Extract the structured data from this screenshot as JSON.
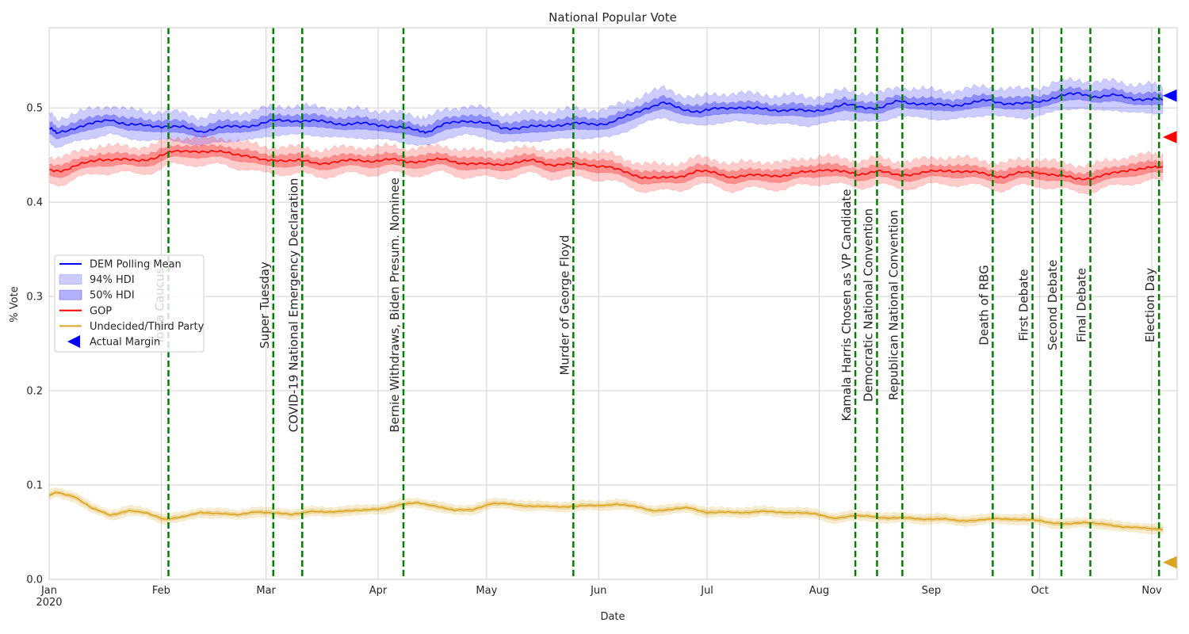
{
  "chart_data": {
    "type": "line",
    "title": "National Popular Vote",
    "xlabel": "Date",
    "ylabel": "% Vote",
    "xlim": [
      "2020-01-01",
      "2020-11-08"
    ],
    "ylim": [
      0.0,
      0.585
    ],
    "grid": true,
    "legend_placement": "center-left",
    "x_ticks": [
      {
        "date": "2020-01-01",
        "label": "Jan",
        "sub": "2020"
      },
      {
        "date": "2020-02-01",
        "label": "Feb",
        "sub": ""
      },
      {
        "date": "2020-03-01",
        "label": "Mar",
        "sub": ""
      },
      {
        "date": "2020-04-01",
        "label": "Apr",
        "sub": ""
      },
      {
        "date": "2020-05-01",
        "label": "May",
        "sub": ""
      },
      {
        "date": "2020-06-01",
        "label": "Jun",
        "sub": ""
      },
      {
        "date": "2020-07-01",
        "label": "Jul",
        "sub": ""
      },
      {
        "date": "2020-08-01",
        "label": "Aug",
        "sub": ""
      },
      {
        "date": "2020-09-01",
        "label": "Sep",
        "sub": ""
      },
      {
        "date": "2020-10-01",
        "label": "Oct",
        "sub": ""
      },
      {
        "date": "2020-11-01",
        "label": "Nov",
        "sub": ""
      }
    ],
    "y_ticks": [
      {
        "value": 0.0,
        "label": "0.0"
      },
      {
        "value": 0.1,
        "label": "0.1"
      },
      {
        "value": 0.2,
        "label": "0.2"
      },
      {
        "value": 0.3,
        "label": "0.3"
      },
      {
        "value": 0.4,
        "label": "0.4"
      },
      {
        "value": 0.5,
        "label": "0.5"
      }
    ],
    "series": [
      {
        "name": "DEM Polling Mean",
        "color": "#0000ff",
        "band_color": "#0000ff",
        "hdi94_halfwidth": 0.015,
        "hdi50_halfwidth": 0.006,
        "points": [
          [
            "2020-01-01",
            0.479
          ],
          [
            "2020-01-03",
            0.473
          ],
          [
            "2020-01-08",
            0.479
          ],
          [
            "2020-01-13",
            0.483
          ],
          [
            "2020-01-18",
            0.488
          ],
          [
            "2020-01-23",
            0.482
          ],
          [
            "2020-01-28",
            0.481
          ],
          [
            "2020-02-02",
            0.481
          ],
          [
            "2020-02-07",
            0.479
          ],
          [
            "2020-02-12",
            0.475
          ],
          [
            "2020-02-17",
            0.479
          ],
          [
            "2020-02-22",
            0.48
          ],
          [
            "2020-02-27",
            0.482
          ],
          [
            "2020-03-03",
            0.486
          ],
          [
            "2020-03-08",
            0.487
          ],
          [
            "2020-03-13",
            0.486
          ],
          [
            "2020-03-18",
            0.485
          ],
          [
            "2020-03-23",
            0.483
          ],
          [
            "2020-03-28",
            0.483
          ],
          [
            "2020-04-02",
            0.482
          ],
          [
            "2020-04-07",
            0.479
          ],
          [
            "2020-04-12",
            0.476
          ],
          [
            "2020-04-15",
            0.475
          ],
          [
            "2020-04-20",
            0.483
          ],
          [
            "2020-04-25",
            0.487
          ],
          [
            "2020-04-30",
            0.484
          ],
          [
            "2020-05-05",
            0.479
          ],
          [
            "2020-05-10",
            0.479
          ],
          [
            "2020-05-15",
            0.48
          ],
          [
            "2020-05-20",
            0.482
          ],
          [
            "2020-05-25",
            0.483
          ],
          [
            "2020-05-30",
            0.483
          ],
          [
            "2020-06-04",
            0.484
          ],
          [
            "2020-06-09",
            0.491
          ],
          [
            "2020-06-14",
            0.5
          ],
          [
            "2020-06-19",
            0.505
          ],
          [
            "2020-06-24",
            0.499
          ],
          [
            "2020-06-29",
            0.496
          ],
          [
            "2020-07-04",
            0.499
          ],
          [
            "2020-07-09",
            0.501
          ],
          [
            "2020-07-14",
            0.499
          ],
          [
            "2020-07-19",
            0.498
          ],
          [
            "2020-07-24",
            0.498
          ],
          [
            "2020-07-29",
            0.496
          ],
          [
            "2020-08-03",
            0.499
          ],
          [
            "2020-08-08",
            0.503
          ],
          [
            "2020-08-13",
            0.501
          ],
          [
            "2020-08-18",
            0.5
          ],
          [
            "2020-08-23",
            0.507
          ],
          [
            "2020-08-28",
            0.505
          ],
          [
            "2020-09-02",
            0.503
          ],
          [
            "2020-09-07",
            0.503
          ],
          [
            "2020-09-12",
            0.505
          ],
          [
            "2020-09-17",
            0.508
          ],
          [
            "2020-09-22",
            0.505
          ],
          [
            "2020-09-27",
            0.504
          ],
          [
            "2020-10-02",
            0.508
          ],
          [
            "2020-10-07",
            0.513
          ],
          [
            "2020-10-12",
            0.515
          ],
          [
            "2020-10-17",
            0.512
          ],
          [
            "2020-10-22",
            0.513
          ],
          [
            "2020-10-27",
            0.51
          ],
          [
            "2020-11-01",
            0.509
          ],
          [
            "2020-11-04",
            0.509
          ]
        ]
      },
      {
        "name": "GOP",
        "color": "#ff0000",
        "band_color": "#ff0000",
        "hdi94_halfwidth": 0.014,
        "hdi50_halfwidth": 0.006,
        "points": [
          [
            "2020-01-01",
            0.434
          ],
          [
            "2020-01-05",
            0.434
          ],
          [
            "2020-01-10",
            0.44
          ],
          [
            "2020-01-15",
            0.446
          ],
          [
            "2020-01-20",
            0.445
          ],
          [
            "2020-01-25",
            0.444
          ],
          [
            "2020-01-30",
            0.447
          ],
          [
            "2020-02-04",
            0.453
          ],
          [
            "2020-02-09",
            0.455
          ],
          [
            "2020-02-14",
            0.453
          ],
          [
            "2020-02-19",
            0.453
          ],
          [
            "2020-02-24",
            0.45
          ],
          [
            "2020-02-29",
            0.444
          ],
          [
            "2020-03-05",
            0.445
          ],
          [
            "2020-03-10",
            0.444
          ],
          [
            "2020-03-15",
            0.441
          ],
          [
            "2020-03-20",
            0.443
          ],
          [
            "2020-03-25",
            0.444
          ],
          [
            "2020-03-30",
            0.444
          ],
          [
            "2020-04-04",
            0.445
          ],
          [
            "2020-04-09",
            0.443
          ],
          [
            "2020-04-14",
            0.444
          ],
          [
            "2020-04-19",
            0.445
          ],
          [
            "2020-04-24",
            0.442
          ],
          [
            "2020-04-29",
            0.44
          ],
          [
            "2020-05-04",
            0.44
          ],
          [
            "2020-05-09",
            0.442
          ],
          [
            "2020-05-14",
            0.444
          ],
          [
            "2020-05-19",
            0.44
          ],
          [
            "2020-05-24",
            0.44
          ],
          [
            "2020-05-29",
            0.44
          ],
          [
            "2020-06-03",
            0.438
          ],
          [
            "2020-06-08",
            0.432
          ],
          [
            "2020-06-13",
            0.427
          ],
          [
            "2020-06-18",
            0.425
          ],
          [
            "2020-06-23",
            0.427
          ],
          [
            "2020-06-28",
            0.433
          ],
          [
            "2020-07-03",
            0.431
          ],
          [
            "2020-07-08",
            0.427
          ],
          [
            "2020-07-13",
            0.428
          ],
          [
            "2020-07-18",
            0.429
          ],
          [
            "2020-07-23",
            0.428
          ],
          [
            "2020-07-28",
            0.432
          ],
          [
            "2020-08-02",
            0.435
          ],
          [
            "2020-08-07",
            0.432
          ],
          [
            "2020-08-12",
            0.43
          ],
          [
            "2020-08-17",
            0.433
          ],
          [
            "2020-08-22",
            0.429
          ],
          [
            "2020-08-27",
            0.43
          ],
          [
            "2020-09-01",
            0.432
          ],
          [
            "2020-09-06",
            0.434
          ],
          [
            "2020-09-11",
            0.432
          ],
          [
            "2020-09-16",
            0.43
          ],
          [
            "2020-09-21",
            0.427
          ],
          [
            "2020-09-26",
            0.431
          ],
          [
            "2020-10-01",
            0.432
          ],
          [
            "2020-10-06",
            0.428
          ],
          [
            "2020-10-11",
            0.425
          ],
          [
            "2020-10-16",
            0.426
          ],
          [
            "2020-10-21",
            0.43
          ],
          [
            "2020-10-26",
            0.435
          ],
          [
            "2020-10-31",
            0.436
          ],
          [
            "2020-11-04",
            0.437
          ]
        ]
      },
      {
        "name": "Undecided/Third Party",
        "color": "#daa520",
        "band_color": "#daa520",
        "hdi94_halfwidth": 0.005,
        "hdi50_halfwidth": 0.002,
        "points": [
          [
            "2020-01-01",
            0.089
          ],
          [
            "2020-01-03",
            0.092
          ],
          [
            "2020-01-08",
            0.088
          ],
          [
            "2020-01-13",
            0.075
          ],
          [
            "2020-01-18",
            0.068
          ],
          [
            "2020-01-23",
            0.073
          ],
          [
            "2020-01-28",
            0.07
          ],
          [
            "2020-02-02",
            0.064
          ],
          [
            "2020-02-07",
            0.066
          ],
          [
            "2020-02-12",
            0.071
          ],
          [
            "2020-02-17",
            0.07
          ],
          [
            "2020-02-22",
            0.068
          ],
          [
            "2020-02-27",
            0.072
          ],
          [
            "2020-03-03",
            0.07
          ],
          [
            "2020-03-08",
            0.069
          ],
          [
            "2020-03-13",
            0.072
          ],
          [
            "2020-03-18",
            0.071
          ],
          [
            "2020-03-23",
            0.073
          ],
          [
            "2020-03-28",
            0.073
          ],
          [
            "2020-04-02",
            0.075
          ],
          [
            "2020-04-07",
            0.079
          ],
          [
            "2020-04-12",
            0.081
          ],
          [
            "2020-04-17",
            0.078
          ],
          [
            "2020-04-22",
            0.073
          ],
          [
            "2020-04-27",
            0.074
          ],
          [
            "2020-05-02",
            0.08
          ],
          [
            "2020-05-07",
            0.08
          ],
          [
            "2020-05-12",
            0.078
          ],
          [
            "2020-05-17",
            0.077
          ],
          [
            "2020-05-22",
            0.077
          ],
          [
            "2020-05-27",
            0.078
          ],
          [
            "2020-06-01",
            0.078
          ],
          [
            "2020-06-06",
            0.08
          ],
          [
            "2020-06-11",
            0.077
          ],
          [
            "2020-06-16",
            0.073
          ],
          [
            "2020-06-21",
            0.074
          ],
          [
            "2020-06-26",
            0.076
          ],
          [
            "2020-07-01",
            0.071
          ],
          [
            "2020-07-06",
            0.071
          ],
          [
            "2020-07-11",
            0.071
          ],
          [
            "2020-07-16",
            0.072
          ],
          [
            "2020-07-21",
            0.071
          ],
          [
            "2020-07-26",
            0.071
          ],
          [
            "2020-07-31",
            0.069
          ],
          [
            "2020-08-05",
            0.065
          ],
          [
            "2020-08-10",
            0.067
          ],
          [
            "2020-08-15",
            0.067
          ],
          [
            "2020-08-20",
            0.065
          ],
          [
            "2020-08-25",
            0.065
          ],
          [
            "2020-08-30",
            0.064
          ],
          [
            "2020-09-04",
            0.064
          ],
          [
            "2020-09-09",
            0.062
          ],
          [
            "2020-09-14",
            0.063
          ],
          [
            "2020-09-19",
            0.064
          ],
          [
            "2020-09-24",
            0.064
          ],
          [
            "2020-09-29",
            0.063
          ],
          [
            "2020-10-04",
            0.06
          ],
          [
            "2020-10-09",
            0.059
          ],
          [
            "2020-10-14",
            0.06
          ],
          [
            "2020-10-19",
            0.059
          ],
          [
            "2020-10-24",
            0.055
          ],
          [
            "2020-10-29",
            0.055
          ],
          [
            "2020-11-04",
            0.053
          ]
        ]
      }
    ],
    "actual_margin": [
      {
        "series": "DEM",
        "value": 0.513,
        "color": "#0000ff"
      },
      {
        "series": "GOP",
        "value": 0.469,
        "color": "#ff0000"
      },
      {
        "series": "Undecided/Third Party",
        "value": 0.018,
        "color": "#daa520"
      }
    ],
    "events": [
      {
        "date": "2020-02-03",
        "label": "Iowa Caucus"
      },
      {
        "date": "2020-03-03",
        "label": "Super Tuesday"
      },
      {
        "date": "2020-03-11",
        "label": "COVID-19 National Emergency Declaration"
      },
      {
        "date": "2020-04-08",
        "label": "Bernie Withdraws, Biden Presum. Nominee"
      },
      {
        "date": "2020-05-25",
        "label": "Murder of George Floyd"
      },
      {
        "date": "2020-08-11",
        "label": "Kamala Harris Chosen as VP Candidate"
      },
      {
        "date": "2020-08-17",
        "label": "Democratic National Convention"
      },
      {
        "date": "2020-08-24",
        "label": "Republican National Convention"
      },
      {
        "date": "2020-09-18",
        "label": "Death of RBG"
      },
      {
        "date": "2020-09-29",
        "label": "First Debate"
      },
      {
        "date": "2020-10-07",
        "label": "Second Debate"
      },
      {
        "date": "2020-10-15",
        "label": "Final Debate"
      },
      {
        "date": "2020-11-03",
        "label": "Election Day"
      }
    ],
    "event_line_color": "#008000",
    "legend": [
      {
        "label": "DEM Polling Mean",
        "kind": "line",
        "color": "#0000ff"
      },
      {
        "label": "94% HDI",
        "kind": "patch",
        "color": "#0000ff",
        "opacity": 0.2
      },
      {
        "label": "50% HDI",
        "kind": "patch",
        "color": "#0000ff",
        "opacity": 0.3
      },
      {
        "label": "GOP",
        "kind": "line",
        "color": "#ff0000"
      },
      {
        "label": "Undecided/Third Party",
        "kind": "line",
        "color": "#daa520"
      },
      {
        "label": "Actual Margin",
        "kind": "marker",
        "color": "#0000ff"
      }
    ]
  }
}
